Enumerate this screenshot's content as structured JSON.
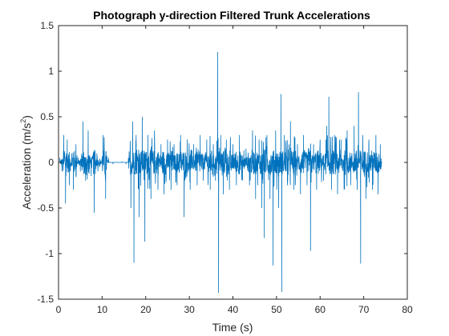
{
  "chart_data": {
    "type": "line",
    "title": "Photograph y-direction Filtered Trunk Accelerations",
    "xlabel": "Time (s)",
    "ylabel_main": "Acceleration (m/s",
    "ylabel_sup": "2",
    "ylabel_close": ")",
    "xlim": [
      0,
      80
    ],
    "ylim": [
      -1.5,
      1.5
    ],
    "xticks": [
      0,
      10,
      20,
      30,
      40,
      50,
      60,
      70,
      80
    ],
    "xtick_labels": [
      "0",
      "10",
      "20",
      "30",
      "40",
      "50",
      "60",
      "70",
      "80"
    ],
    "yticks": [
      -1.5,
      -1,
      -0.5,
      0,
      0.5,
      1,
      1.5
    ],
    "ytick_labels": [
      "-1.5",
      "-1",
      "-0.5",
      "0",
      "0.5",
      "1",
      "1.5"
    ],
    "grid": false,
    "series": [
      {
        "color": "#0072BD",
        "x_start": 0.3,
        "x_end": 74.3,
        "description_points": [
          [
            0.3,
            0.05
          ],
          [
            0.8,
            -0.1
          ],
          [
            1.2,
            0.3
          ],
          [
            1.6,
            -0.45
          ],
          [
            2.0,
            0.25
          ],
          [
            2.5,
            -0.25
          ],
          [
            3.0,
            0.1
          ],
          [
            3.4,
            -0.3
          ],
          [
            4.0,
            0.2
          ],
          [
            4.5,
            0.05
          ],
          [
            5.0,
            -0.1
          ],
          [
            5.6,
            0.45
          ],
          [
            6.2,
            -0.2
          ],
          [
            6.8,
            0.35
          ],
          [
            7.5,
            -0.15
          ],
          [
            8.2,
            -0.55
          ],
          [
            8.8,
            0.1
          ],
          [
            9.5,
            -0.05
          ],
          [
            10.2,
            0.3
          ],
          [
            10.8,
            -0.4
          ],
          [
            11.5,
            0.05
          ],
          [
            12.5,
            -0.02
          ],
          [
            13.5,
            0.0
          ],
          [
            14.5,
            0.01
          ],
          [
            15.5,
            -0.02
          ],
          [
            16.2,
            0.12
          ],
          [
            16.6,
            -0.5
          ],
          [
            17.0,
            0.45
          ],
          [
            17.3,
            -1.1
          ],
          [
            17.8,
            0.3
          ],
          [
            18.5,
            -0.6
          ],
          [
            19.2,
            0.5
          ],
          [
            19.8,
            -0.87
          ],
          [
            20.5,
            0.3
          ],
          [
            21.2,
            -0.4
          ],
          [
            22.0,
            0.35
          ],
          [
            22.8,
            -0.3
          ],
          [
            23.5,
            0.2
          ],
          [
            24.2,
            -0.35
          ],
          [
            25.0,
            0.25
          ],
          [
            25.8,
            -0.3
          ],
          [
            26.5,
            0.2
          ],
          [
            27.2,
            -0.25
          ],
          [
            28.0,
            0.3
          ],
          [
            28.8,
            -0.6
          ],
          [
            29.5,
            0.25
          ],
          [
            30.2,
            -0.3
          ],
          [
            31.0,
            0.2
          ],
          [
            31.8,
            -0.25
          ],
          [
            32.5,
            0.3
          ],
          [
            33.2,
            -0.2
          ],
          [
            34.0,
            0.25
          ],
          [
            34.8,
            -0.3
          ],
          [
            35.5,
            0.2
          ],
          [
            36.0,
            -0.2
          ],
          [
            36.5,
            1.21
          ],
          [
            36.7,
            -1.43
          ],
          [
            37.2,
            0.3
          ],
          [
            37.8,
            -0.35
          ],
          [
            38.5,
            0.25
          ],
          [
            39.2,
            -0.3
          ],
          [
            40.0,
            0.2
          ],
          [
            40.8,
            -0.25
          ],
          [
            41.5,
            0.3
          ],
          [
            42.2,
            -0.2
          ],
          [
            43.0,
            0.15
          ],
          [
            43.8,
            -0.25
          ],
          [
            44.5,
            0.35
          ],
          [
            45.2,
            -0.4
          ],
          [
            46.0,
            0.25
          ],
          [
            46.6,
            -0.5
          ],
          [
            47.2,
            -0.83
          ],
          [
            47.8,
            0.3
          ],
          [
            48.5,
            -0.4
          ],
          [
            49.2,
            -1.13
          ],
          [
            49.8,
            0.35
          ],
          [
            50.5,
            -0.5
          ],
          [
            51.0,
            0.75
          ],
          [
            51.2,
            -1.42
          ],
          [
            51.8,
            0.3
          ],
          [
            52.5,
            -0.25
          ],
          [
            53.2,
            0.45
          ],
          [
            54.0,
            -0.3
          ],
          [
            54.8,
            0.2
          ],
          [
            55.5,
            -0.35
          ],
          [
            56.2,
            0.3
          ],
          [
            57.0,
            -0.25
          ],
          [
            57.8,
            -0.97
          ],
          [
            58.5,
            0.2
          ],
          [
            59.2,
            -0.3
          ],
          [
            60.0,
            0.25
          ],
          [
            60.8,
            -0.2
          ],
          [
            61.5,
            0.4
          ],
          [
            62.0,
            0.72
          ],
          [
            62.6,
            -0.3
          ],
          [
            63.3,
            0.3
          ],
          [
            64.0,
            -0.35
          ],
          [
            64.8,
            0.25
          ],
          [
            65.5,
            -0.3
          ],
          [
            66.2,
            0.35
          ],
          [
            67.0,
            -0.25
          ],
          [
            67.8,
            0.4
          ],
          [
            68.5,
            -0.3
          ],
          [
            68.8,
            0.77
          ],
          [
            69.3,
            -1.11
          ],
          [
            69.8,
            0.3
          ],
          [
            70.5,
            -0.4
          ],
          [
            71.2,
            0.25
          ],
          [
            72.0,
            -0.3
          ],
          [
            72.8,
            0.3
          ],
          [
            73.3,
            -0.35
          ],
          [
            73.8,
            0.2
          ],
          [
            74.3,
            0.0
          ]
        ]
      }
    ]
  }
}
